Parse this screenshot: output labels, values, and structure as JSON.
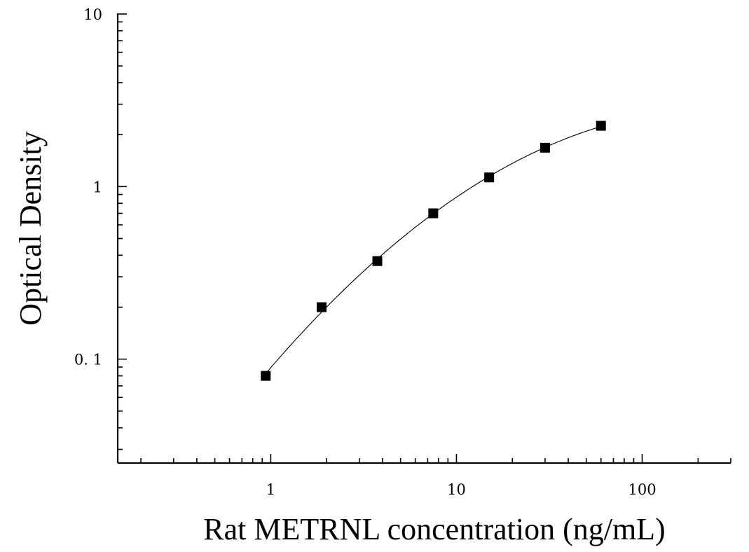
{
  "chart_data": {
    "type": "scatter",
    "title": "",
    "xlabel": "Rat METRNL concentration (ng/mL)",
    "ylabel": "Optical Density",
    "xscale": "log",
    "yscale": "log",
    "xlim": [
      0.15,
      300
    ],
    "ylim": [
      0.025,
      10
    ],
    "xticks": [
      1,
      10,
      100
    ],
    "xtick_labels": [
      "1",
      "10",
      "100"
    ],
    "yticks": [
      0.1,
      1,
      10
    ],
    "ytick_labels": [
      "0. 1",
      "1",
      "10"
    ],
    "grid": false,
    "legend": "none",
    "marker": "square",
    "fit_curve": true,
    "series": [
      {
        "x": [
          0.94,
          1.88,
          3.75,
          7.5,
          15,
          30,
          60
        ],
        "y": [
          0.08,
          0.2,
          0.37,
          0.7,
          1.13,
          1.68,
          2.25
        ]
      }
    ]
  }
}
